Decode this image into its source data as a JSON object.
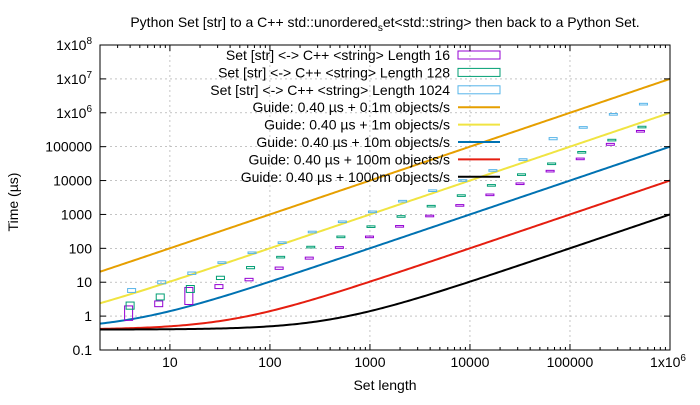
{
  "chart_data": {
    "type": "line",
    "title_main": "Python Set [str] to a C++ std::unordered",
    "title_sub": "s",
    "title_rest": "et<std::string> then back to a Python Set.",
    "xlabel": "Set length",
    "ylabel": "Time (µs)",
    "x_scale": "log",
    "y_scale": "log",
    "xlim": [
      2,
      1000000
    ],
    "ylim": [
      0.1,
      100000000
    ],
    "grid": true,
    "legend_position": "top-left",
    "x_ticks": [
      {
        "value": 10,
        "label": "10"
      },
      {
        "value": 100,
        "label": "100"
      },
      {
        "value": 1000,
        "label": "1000"
      },
      {
        "value": 10000,
        "label": "10000"
      },
      {
        "value": 100000,
        "label": "100000"
      }
    ],
    "x_tick_last": {
      "value": 1000000,
      "base": "1x10",
      "exp": "6"
    },
    "y_ticks_plain": [
      {
        "value": 0.1,
        "label": "0.1"
      },
      {
        "value": 1,
        "label": "1"
      },
      {
        "value": 10,
        "label": "10"
      },
      {
        "value": 100,
        "label": "100"
      },
      {
        "value": 1000,
        "label": "1000"
      },
      {
        "value": 10000,
        "label": "10000"
      },
      {
        "value": 100000,
        "label": "100000"
      }
    ],
    "y_ticks_sci": [
      {
        "value": 1000000,
        "base": "1x10",
        "exp": "6"
      },
      {
        "value": 10000000,
        "base": "1x10",
        "exp": "7"
      },
      {
        "value": 100000000,
        "base": "1x10",
        "exp": "8"
      }
    ],
    "box_series": [
      {
        "name": "Set [str] <-> C++ <string> Length 16",
        "color": "#9400d3",
        "points": [
          {
            "x": 4,
            "low": 0.75,
            "high": 2.0
          },
          {
            "x": 8,
            "low": 1.9,
            "high": 2.8
          },
          {
            "x": 16,
            "low": 2.2,
            "high": 7.0
          },
          {
            "x": 32,
            "low": 6.5,
            "high": 8.5
          },
          {
            "x": 64,
            "low": 11,
            "high": 13
          },
          {
            "x": 128,
            "low": 24,
            "high": 28
          },
          {
            "x": 256,
            "low": 48,
            "high": 55
          },
          {
            "x": 512,
            "low": 100,
            "high": 112
          },
          {
            "x": 1024,
            "low": 210,
            "high": 230
          },
          {
            "x": 2048,
            "low": 430,
            "high": 470
          },
          {
            "x": 4096,
            "low": 880,
            "high": 950
          },
          {
            "x": 8192,
            "low": 1800,
            "high": 1950
          },
          {
            "x": 16384,
            "low": 3700,
            "high": 4000
          },
          {
            "x": 32768,
            "low": 7800,
            "high": 8500
          },
          {
            "x": 65536,
            "low": 18000,
            "high": 20000
          },
          {
            "x": 131072,
            "low": 42000,
            "high": 46000
          },
          {
            "x": 262144,
            "low": 110000,
            "high": 125000
          },
          {
            "x": 524288,
            "low": 270000,
            "high": 300000
          }
        ]
      },
      {
        "name": "Set [str] <-> C++ <string> Length 128",
        "color": "#009e73",
        "points": [
          {
            "x": 4,
            "low": 1.6,
            "high": 2.6
          },
          {
            "x": 8,
            "low": 3.0,
            "high": 4.5
          },
          {
            "x": 16,
            "low": 5.0,
            "high": 8.0
          },
          {
            "x": 32,
            "low": 12,
            "high": 15
          },
          {
            "x": 64,
            "low": 25,
            "high": 29
          },
          {
            "x": 128,
            "low": 52,
            "high": 58
          },
          {
            "x": 256,
            "low": 105,
            "high": 115
          },
          {
            "x": 512,
            "low": 210,
            "high": 230
          },
          {
            "x": 1024,
            "low": 420,
            "high": 460
          },
          {
            "x": 2048,
            "low": 850,
            "high": 920
          },
          {
            "x": 4096,
            "low": 1700,
            "high": 1850
          },
          {
            "x": 8192,
            "low": 3500,
            "high": 3800
          },
          {
            "x": 16384,
            "low": 7000,
            "high": 7600
          },
          {
            "x": 32768,
            "low": 14500,
            "high": 15800
          },
          {
            "x": 65536,
            "low": 30000,
            "high": 33000
          },
          {
            "x": 131072,
            "low": 65000,
            "high": 72000
          },
          {
            "x": 262144,
            "low": 150000,
            "high": 165000
          },
          {
            "x": 524288,
            "low": 360000,
            "high": 400000
          }
        ]
      },
      {
        "name": "Set [str] <-> C++ <string> Length 1024",
        "color": "#56b4e9",
        "points": [
          {
            "x": 4,
            "low": 5.0,
            "high": 6.5
          },
          {
            "x": 8,
            "low": 9.0,
            "high": 11
          },
          {
            "x": 16,
            "low": 17,
            "high": 20
          },
          {
            "x": 32,
            "low": 36,
            "high": 40
          },
          {
            "x": 64,
            "low": 70,
            "high": 78
          },
          {
            "x": 128,
            "low": 140,
            "high": 155
          },
          {
            "x": 256,
            "low": 290,
            "high": 320
          },
          {
            "x": 512,
            "low": 580,
            "high": 640
          },
          {
            "x": 1024,
            "low": 1150,
            "high": 1260
          },
          {
            "x": 2048,
            "low": 2400,
            "high": 2600
          },
          {
            "x": 4096,
            "low": 4900,
            "high": 5300
          },
          {
            "x": 8192,
            "low": 9800,
            "high": 10600
          },
          {
            "x": 16384,
            "low": 19500,
            "high": 21000
          },
          {
            "x": 32768,
            "low": 40000,
            "high": 44000
          },
          {
            "x": 65536,
            "low": 160000,
            "high": 185000
          },
          {
            "x": 131072,
            "low": 350000,
            "high": 390000
          },
          {
            "x": 262144,
            "low": 850000,
            "high": 950000
          },
          {
            "x": 524288,
            "low": 1700000,
            "high": 1900000
          }
        ]
      }
    ],
    "guide_series": [
      {
        "name": "Guide: 0.40 µs + 0.1m objects/s",
        "color": "#e69f00",
        "base_us": 0.4,
        "rate_per_s": 100000
      },
      {
        "name": "Guide: 0.40 µs + 1m objects/s",
        "color": "#f0e442",
        "base_us": 0.4,
        "rate_per_s": 1000000
      },
      {
        "name": "Guide: 0.40 µs + 10m objects/s",
        "color": "#0072b2",
        "base_us": 0.4,
        "rate_per_s": 10000000
      },
      {
        "name": "Guide: 0.40 µs + 100m objects/s",
        "color": "#e51e10",
        "base_us": 0.4,
        "rate_per_s": 100000000
      },
      {
        "name": "Guide: 0.40 µs + 1000m objects/s",
        "color": "#000000",
        "base_us": 0.4,
        "rate_per_s": 1000000000
      }
    ]
  }
}
